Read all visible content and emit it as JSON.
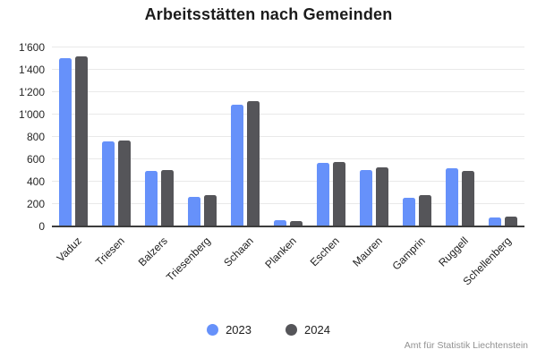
{
  "title": "Arbeitsstätten nach Gemeinden",
  "footer": "Amt für Statistik Liechtenstein",
  "colors": {
    "series_2023": "#6691fa",
    "series_2024": "#555559",
    "gridline": "#e9e9e9",
    "axis_line": "#3d3d3d",
    "title_text": "#1b1b1b",
    "footer_text": "#919191"
  },
  "chart_data": {
    "type": "bar",
    "title": "Arbeitsstätten nach Gemeinden",
    "xlabel": "",
    "ylabel": "",
    "categories": [
      "Vaduz",
      "Triesen",
      "Balzers",
      "Triesenberg",
      "Schaan",
      "Planken",
      "Eschen",
      "Mauren",
      "Gamprin",
      "Ruggell",
      "Schellenberg"
    ],
    "series": [
      {
        "name": "2023",
        "color": "#6691fa",
        "values": [
          1505,
          760,
          500,
          265,
          1090,
          55,
          570,
          505,
          260,
          520,
          80
        ]
      },
      {
        "name": "2024",
        "color": "#555559",
        "values": [
          1520,
          770,
          505,
          280,
          1120,
          50,
          575,
          525,
          280,
          500,
          90
        ]
      }
    ],
    "ylim": [
      0,
      1600
    ],
    "ytick_interval": 200,
    "ytick_labels": [
      "0",
      "200",
      "400",
      "600",
      "800",
      "1'000",
      "1'200",
      "1'400",
      "1'600"
    ],
    "grid": true,
    "legend_position": "bottom",
    "source_note": "Amt für Statistik Liechtenstein"
  }
}
